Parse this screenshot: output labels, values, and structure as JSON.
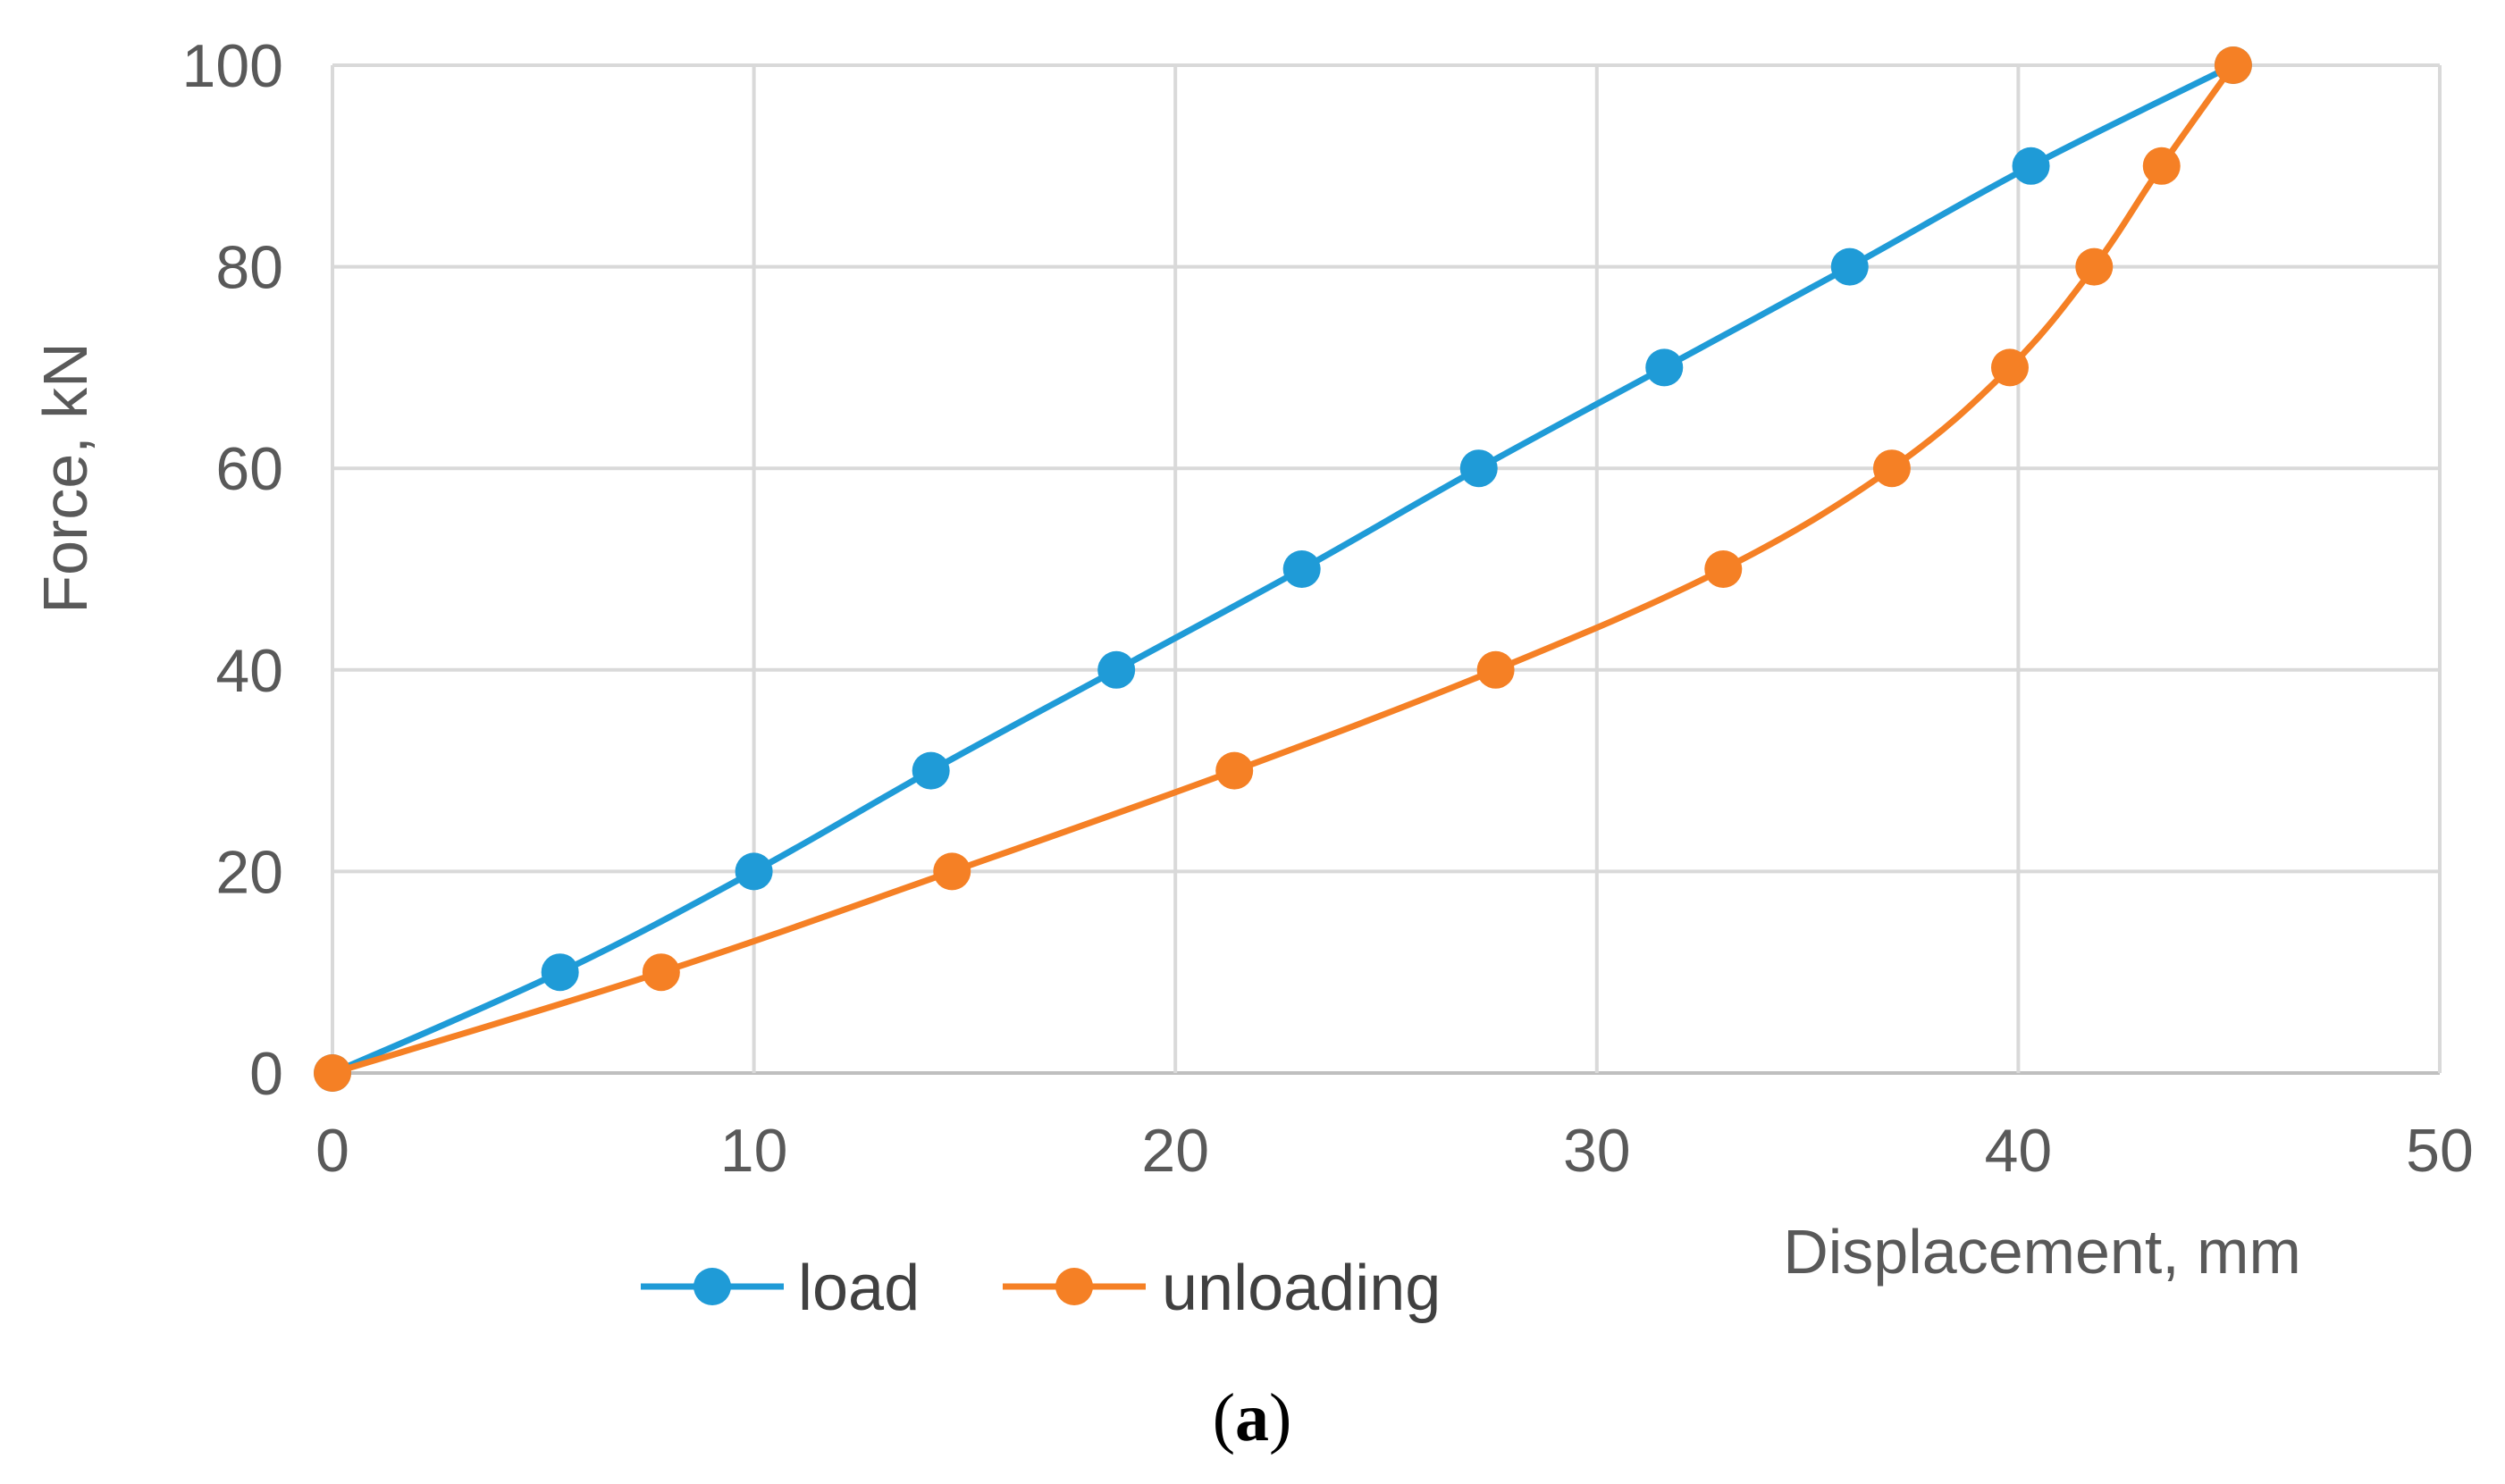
{
  "chart_data": {
    "type": "line",
    "title": "",
    "xlabel": "Displacement, mm",
    "ylabel": "Force, kN",
    "xlim": [
      0,
      50
    ],
    "ylim": [
      0,
      100
    ],
    "xticks": [
      0,
      10,
      20,
      30,
      40,
      50
    ],
    "yticks": [
      0,
      20,
      40,
      60,
      80,
      100
    ],
    "grid": true,
    "legend_position": "bottom",
    "series": [
      {
        "name": "load",
        "color": "#1f9bd7",
        "x": [
          0,
          5.4,
          10,
          14.2,
          18.6,
          23.0,
          27.2,
          31.6,
          36.0,
          40.3,
          45.1
        ],
        "y": [
          0,
          10,
          20,
          30,
          40,
          50,
          60,
          70,
          80,
          90,
          100
        ]
      },
      {
        "name": "unloading",
        "color": "#f58025",
        "x": [
          0,
          7.8,
          14.7,
          21.4,
          27.6,
          33.0,
          37.0,
          39.8,
          41.8,
          43.4,
          45.1
        ],
        "y": [
          0,
          10,
          20,
          30,
          40,
          50,
          60,
          70,
          80,
          90,
          100
        ]
      }
    ]
  },
  "caption": {
    "open": "(",
    "label": "a",
    "close": ")"
  }
}
